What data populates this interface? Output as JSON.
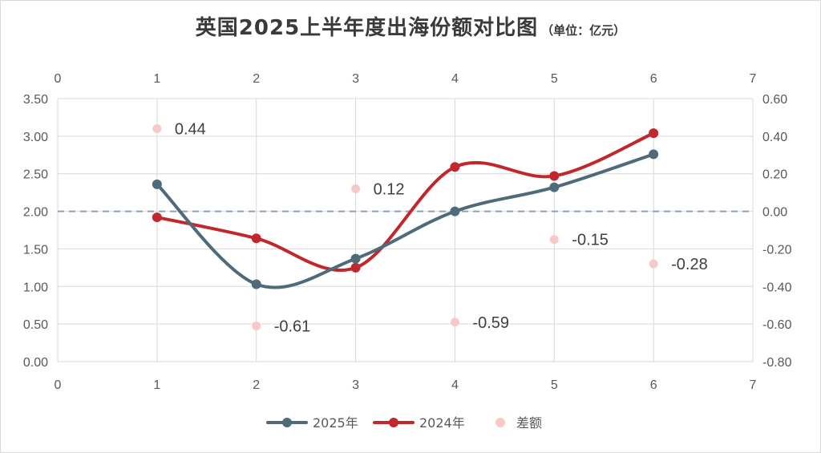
{
  "title": "英国2025上半年度出海份额对比图",
  "unit": "（单位：亿元）",
  "colors": {
    "s2025": "#4f6b7a",
    "s2024": "#c0282d",
    "diff": "#f9c9c9",
    "zero": "#8ea0b5",
    "grid": "#d9d9d9"
  },
  "chart_data": {
    "type": "line",
    "x": [
      1,
      2,
      3,
      4,
      5,
      6
    ],
    "xlim": [
      0,
      7
    ],
    "x_ticks": [
      "0",
      "1",
      "2",
      "3",
      "4",
      "5",
      "6",
      "7"
    ],
    "ylim_left": [
      0,
      3.5
    ],
    "y_ticks_left": [
      "0.00",
      "0.50",
      "1.00",
      "1.50",
      "2.00",
      "2.50",
      "3.00",
      "3.50"
    ],
    "ylim_right": [
      -0.8,
      0.6
    ],
    "y_ticks_right": [
      "-0.80",
      "-0.60",
      "-0.40",
      "-0.20",
      "0.00",
      "0.20",
      "0.40",
      "0.60"
    ],
    "grid": true,
    "legend_position": "bottom",
    "series": [
      {
        "name": "2025年",
        "type": "line",
        "axis": "left",
        "values": [
          2.36,
          1.03,
          1.37,
          2.0,
          2.32,
          2.76
        ]
      },
      {
        "name": "2024年",
        "type": "line",
        "axis": "left",
        "values": [
          1.92,
          1.64,
          1.25,
          2.59,
          2.47,
          3.04
        ]
      },
      {
        "name": "差额",
        "type": "scatter",
        "axis": "right",
        "values": [
          0.44,
          -0.61,
          0.12,
          -0.59,
          -0.15,
          -0.28
        ],
        "labels": [
          "0.44",
          "-0.61",
          "0.12",
          "-0.59",
          "-0.15",
          "-0.28"
        ]
      }
    ]
  }
}
